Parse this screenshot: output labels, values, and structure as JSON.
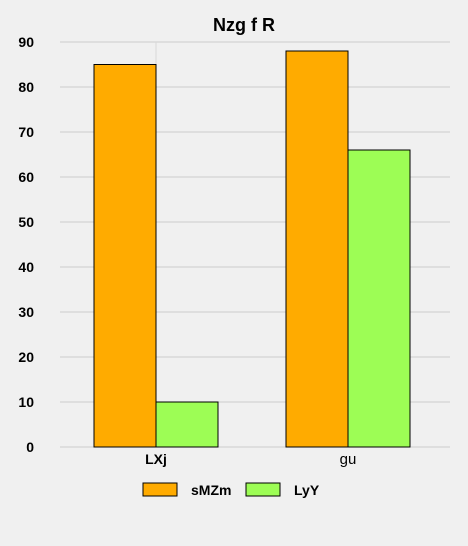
{
  "chart_data": {
    "type": "bar",
    "title": "Nzg f R",
    "categories": [
      "LXj",
      "gu"
    ],
    "series": [
      {
        "name": "sMZm",
        "values": [
          85,
          88
        ],
        "color": "#ffab00"
      },
      {
        "name": "LyY",
        "values": [
          10,
          66
        ],
        "color": "#9dfd55"
      }
    ],
    "ylim": [
      0,
      90
    ],
    "yticks": [
      0,
      10,
      20,
      30,
      40,
      50,
      60,
      70,
      80,
      90
    ],
    "grid": true,
    "legend": "bottom"
  }
}
